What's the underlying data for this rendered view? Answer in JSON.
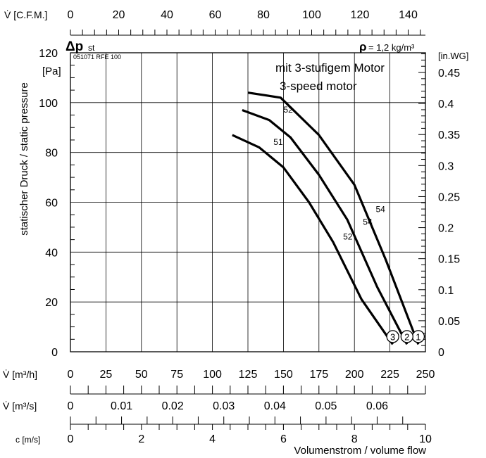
{
  "chart_data": {
    "type": "line",
    "x_unit": "m³/h",
    "y_unit": "Pa",
    "xlim": [
      0,
      250
    ],
    "ylim": [
      0,
      120
    ],
    "grid": true,
    "series": [
      {
        "name": "1",
        "points": [
          [
            125,
            104
          ],
          [
            148,
            102
          ],
          [
            175,
            87
          ],
          [
            200,
            67
          ],
          [
            222,
            37
          ],
          [
            245,
            3
          ]
        ]
      },
      {
        "name": "2",
        "points": [
          [
            121,
            97
          ],
          [
            140,
            93
          ],
          [
            155,
            86
          ],
          [
            175,
            71
          ],
          [
            195,
            53
          ],
          [
            216,
            26
          ],
          [
            237,
            3
          ]
        ]
      },
      {
        "name": "3",
        "points": [
          [
            114,
            87
          ],
          [
            133,
            82
          ],
          [
            150,
            74
          ],
          [
            168,
            60
          ],
          [
            185,
            44
          ],
          [
            205,
            21
          ],
          [
            227,
            3
          ]
        ]
      }
    ],
    "curve_labels": [
      {
        "text": "52",
        "x": 150,
        "y": 96
      },
      {
        "text": "51",
        "x": 143,
        "y": 83
      },
      {
        "text": "54",
        "x": 215,
        "y": 56
      },
      {
        "text": "54",
        "x": 206,
        "y": 51
      },
      {
        "text": "52",
        "x": 192,
        "y": 45
      }
    ]
  },
  "labels": {
    "top_axis": "V̇ [C.F.M.]",
    "dp": "Δp",
    "dp_sub": "st",
    "code": "051071 RFE 100",
    "rho_symbol": "ρ",
    "rho_value": "= 1,2 kg/m³",
    "pa_unit": "[Pa]",
    "inwg_unit": "[in.WG]",
    "ylabel": "statischer Druck / static pressure",
    "title_de": "mit 3-stufigem Motor",
    "title_en": "3-speed motor",
    "axis_m3h": "V̇ [m³/h]",
    "axis_m3s": "V̇ [m³/s]",
    "axis_cms": "c [m/s]",
    "xlabel": "Volumenstrom / volume flow"
  },
  "axes": {
    "y_left": [
      "0",
      "20",
      "40",
      "60",
      "80",
      "100",
      "120"
    ],
    "y_right": [
      "0",
      "0.05",
      "0.1",
      "0.15",
      "0.2",
      "0.25",
      "0.3",
      "0.35",
      "0.4",
      "0.45"
    ],
    "cfm": [
      "0",
      "20",
      "40",
      "60",
      "80",
      "100",
      "120",
      "140"
    ],
    "m3h": [
      "0",
      "25",
      "50",
      "75",
      "100",
      "125",
      "150",
      "175",
      "200",
      "225",
      "250"
    ],
    "m3s": [
      "0",
      "0.01",
      "0.02",
      "0.03",
      "0.04",
      "0.05",
      "0.06"
    ],
    "cms": [
      "0",
      "2",
      "4",
      "6",
      "8",
      "10"
    ]
  }
}
